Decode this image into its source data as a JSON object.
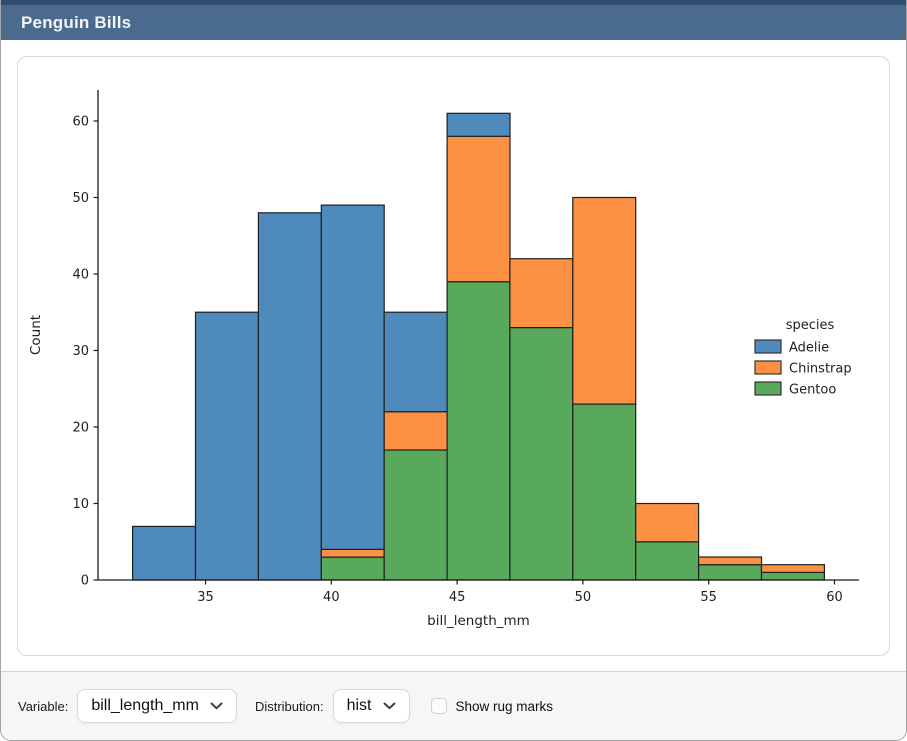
{
  "window": {
    "title": "Penguin Bills"
  },
  "controls": {
    "variable_label": "Variable:",
    "variable_value": "bill_length_mm",
    "distribution_label": "Distribution:",
    "distribution_value": "hist",
    "rug_label": "Show rug marks",
    "rug_checked": false
  },
  "colors": {
    "titlebar": "#4a6b8d",
    "titlebar_top_strip": "#2f4c6b",
    "adelie_blue": "#4f8abd",
    "chinstrap_orange": "#fc9144",
    "gentoo_green": "#58a95c",
    "bar_edge": "#1f1f1f"
  },
  "chart_data": {
    "type": "bar",
    "subtype": "stacked-histogram",
    "title": "",
    "xlabel": "bill_length_mm",
    "ylabel": "Count",
    "bin_edges": [
      32.1,
      34.6,
      37.1,
      39.6,
      42.1,
      44.6,
      47.1,
      49.6,
      52.1,
      54.6,
      57.1,
      59.6
    ],
    "xlim": [
      30.725,
      60.975
    ],
    "ylim": [
      0,
      64.05
    ],
    "xticks": [
      35,
      40,
      45,
      50,
      55,
      60
    ],
    "yticks": [
      0,
      10,
      20,
      30,
      40,
      50,
      60
    ],
    "grid": false,
    "bar_edge_color": "#1f1f1f",
    "series": [
      {
        "name": "Gentoo",
        "color": "#58a95c",
        "values": [
          0,
          0,
          0,
          3,
          17,
          39,
          33,
          23,
          5,
          2,
          1
        ]
      },
      {
        "name": "Chinstrap",
        "color": "#fc9144",
        "values": [
          0,
          0,
          0,
          1,
          5,
          19,
          9,
          27,
          5,
          1,
          1
        ]
      },
      {
        "name": "Adelie",
        "color": "#4f8abd",
        "values": [
          7,
          35,
          48,
          45,
          13,
          3,
          0,
          0,
          0,
          0,
          0
        ]
      }
    ],
    "bin_totals": [
      7,
      35,
      48,
      49,
      35,
      61,
      42,
      50,
      10,
      3,
      2
    ],
    "legend": {
      "title": "species",
      "position": "right",
      "entries": [
        "Adelie",
        "Chinstrap",
        "Gentoo"
      ]
    }
  }
}
